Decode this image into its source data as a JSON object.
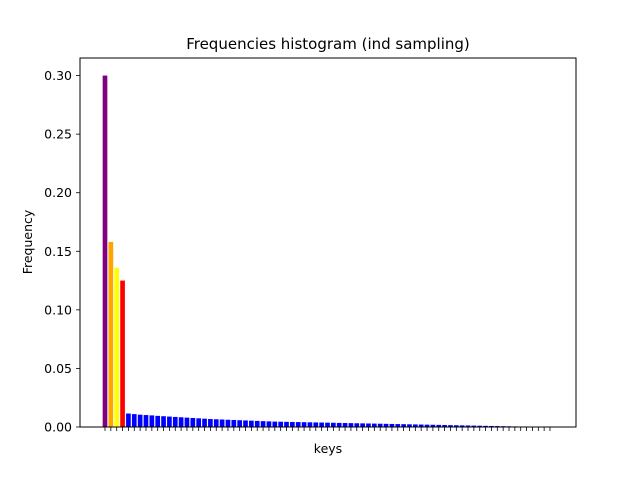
{
  "chart_data": {
    "type": "bar",
    "title": "Frequencies histogram (ind sampling)",
    "xlabel": "keys",
    "ylabel": "Frequency",
    "ylim": [
      0,
      0.315
    ],
    "yticks": [
      "0.00",
      "0.05",
      "0.10",
      "0.15",
      "0.20",
      "0.25",
      "0.30"
    ],
    "grid": false,
    "x_tick_labels_visible": false,
    "values": [
      0.3,
      0.158,
      0.136,
      0.125,
      0.0115,
      0.011,
      0.0105,
      0.0102,
      0.0099,
      0.0095,
      0.0092,
      0.0089,
      0.0086,
      0.0083,
      0.008,
      0.0077,
      0.0074,
      0.0071,
      0.0068,
      0.0066,
      0.0064,
      0.0062,
      0.006,
      0.0058,
      0.0056,
      0.0054,
      0.0052,
      0.005,
      0.0048,
      0.0046,
      0.0045,
      0.0044,
      0.0043,
      0.0042,
      0.0041,
      0.004,
      0.0039,
      0.0038,
      0.0037,
      0.0036,
      0.0035,
      0.0034,
      0.0033,
      0.0032,
      0.0031,
      0.003,
      0.0029,
      0.0028,
      0.0027,
      0.0026,
      0.0025,
      0.0024,
      0.0023,
      0.0022,
      0.0021,
      0.002,
      0.0019,
      0.0018,
      0.0017,
      0.0016,
      0.0015,
      0.0014,
      0.0013,
      0.0012,
      0.0011,
      0.001,
      0.0009,
      0.0008,
      0.0007,
      0.0006,
      0.0005,
      0.0004,
      0.0004,
      0.0003,
      0.0003,
      0.0002,
      0.0002
    ],
    "bar_colors": [
      "#800080",
      "#ffa500",
      "#ffff00",
      "#ff0000",
      "#0000ff",
      "#0000ff",
      "#0000ff",
      "#0000ff",
      "#0000ff",
      "#0000ff",
      "#0000ff",
      "#0000ff",
      "#0000ff",
      "#0000ff",
      "#0000ff",
      "#0000ff",
      "#0000ff",
      "#0000ff",
      "#0000ff",
      "#0000ff",
      "#0000ff",
      "#0000ff",
      "#0000ff",
      "#0000ff",
      "#0000ff",
      "#0000ff",
      "#0000ff",
      "#0000ff",
      "#0000ff",
      "#0000ff",
      "#0000ff",
      "#0000ff",
      "#0000ff",
      "#0000ff",
      "#0000ff",
      "#0000ff",
      "#0000ff",
      "#0000ff",
      "#0000ff",
      "#0000ff",
      "#0000ff",
      "#0000ff",
      "#0000ff",
      "#0000ff",
      "#0000ff",
      "#0000ff",
      "#0000ff",
      "#0000ff",
      "#0000ff",
      "#0000ff",
      "#0000ff",
      "#0000ff",
      "#0000ff",
      "#0000ff",
      "#0000ff",
      "#0000ff",
      "#0000ff",
      "#0000ff",
      "#0000ff",
      "#0000ff",
      "#0000ff",
      "#0000ff",
      "#0000ff",
      "#0000ff",
      "#0000ff",
      "#0000ff",
      "#0000ff",
      "#0000ff",
      "#0000ff",
      "#0000ff",
      "#0000ff",
      "#0000ff",
      "#0000ff",
      "#0000ff",
      "#0000ff",
      "#0000ff",
      "#0000ff"
    ]
  }
}
